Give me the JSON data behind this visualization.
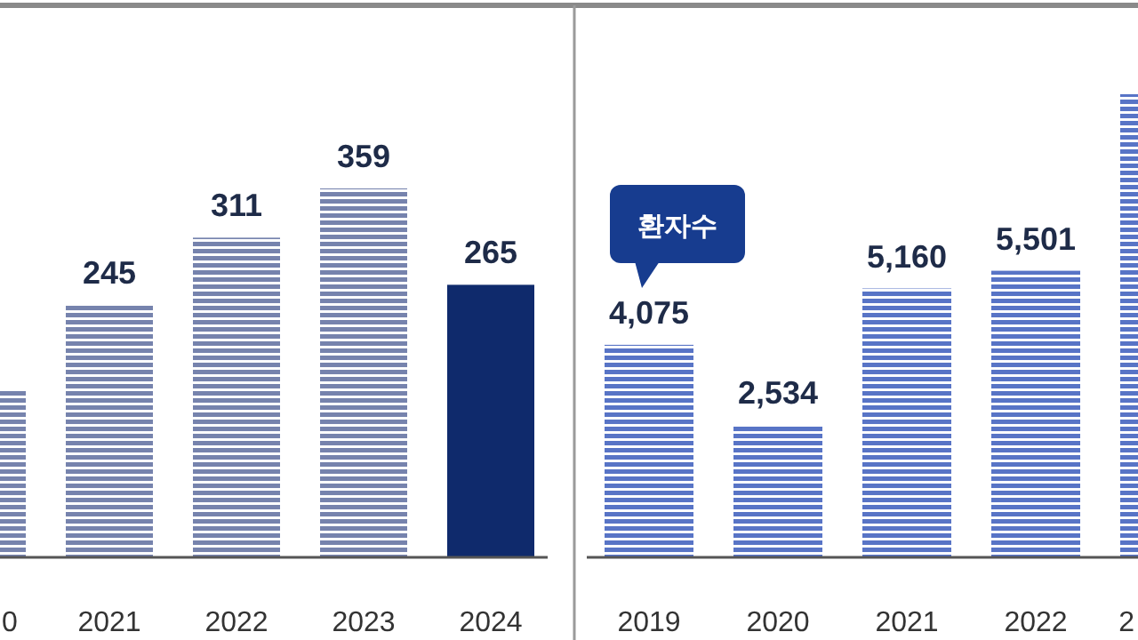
{
  "chart_data": [
    {
      "type": "bar",
      "categories": [
        "0",
        "2021",
        "2022",
        "2023",
        "2024"
      ],
      "values": [
        162,
        245,
        311,
        359,
        265
      ],
      "value_labels": [
        null,
        "245",
        "311",
        "359",
        "265"
      ],
      "colors": [
        "#7683ad",
        "#7683ad",
        "#7683ad",
        "#7683ad",
        "#0f2a6c"
      ]
    },
    {
      "type": "bar",
      "categories": [
        "2019",
        "2020",
        "2021",
        "2022",
        "2"
      ],
      "series": [
        {
          "name": "환자수",
          "color": "#5874c6",
          "values": [
            4075,
            2534,
            5160,
            5501,
            8900
          ],
          "value_labels": [
            "4,075",
            "2,534",
            "5,160",
            "5,501",
            null
          ]
        }
      ]
    }
  ]
}
